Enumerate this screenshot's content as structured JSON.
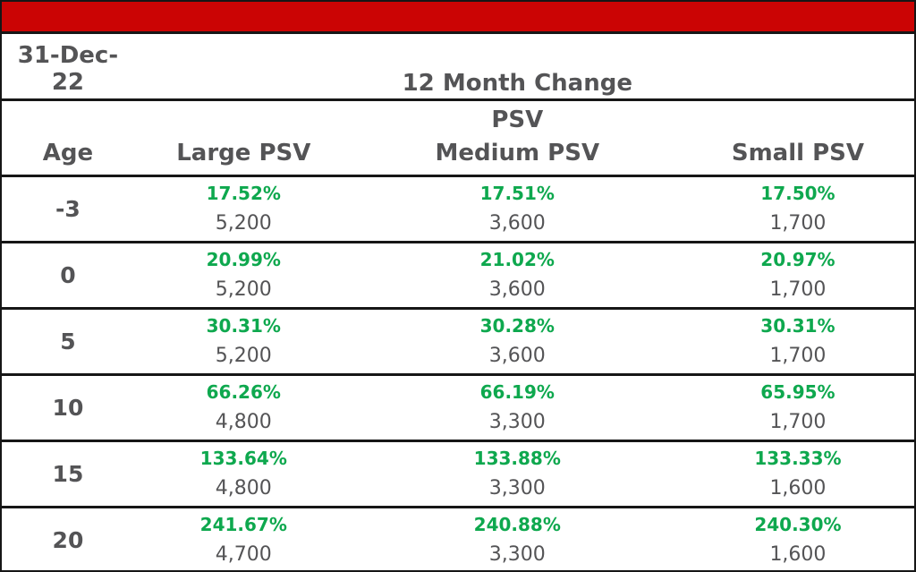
{
  "colors": {
    "banner_red": "#cb0404",
    "percent_green": "#0ea84e",
    "text_dark": "#545456",
    "border_black": "#161616"
  },
  "header": {
    "date_label": "31-Dec-22",
    "date_line1": "31-Dec-",
    "date_line2": "22",
    "group_title": "12 Month Change",
    "col_age": "Age",
    "col_large": "Large PSV",
    "col_medium_line1": "PSV",
    "col_medium_line2": "Medium PSV",
    "col_small": "Small PSV"
  },
  "chart_data": {
    "type": "table",
    "title": "12 Month Change",
    "date_label": "31-Dec-22",
    "columns": [
      "Age",
      "Large PSV",
      "PSV Medium PSV",
      "Small PSV"
    ],
    "rows": [
      {
        "age": "-3",
        "large": {
          "pct": "17.52%",
          "val": "5,200"
        },
        "medium": {
          "pct": "17.51%",
          "val": "3,600"
        },
        "small": {
          "pct": "17.50%",
          "val": "1,700"
        }
      },
      {
        "age": "0",
        "large": {
          "pct": "20.99%",
          "val": "5,200"
        },
        "medium": {
          "pct": "21.02%",
          "val": "3,600"
        },
        "small": {
          "pct": "20.97%",
          "val": "1,700"
        }
      },
      {
        "age": "5",
        "large": {
          "pct": "30.31%",
          "val": "5,200"
        },
        "medium": {
          "pct": "30.28%",
          "val": "3,600"
        },
        "small": {
          "pct": "30.31%",
          "val": "1,700"
        }
      },
      {
        "age": "10",
        "large": {
          "pct": "66.26%",
          "val": "4,800"
        },
        "medium": {
          "pct": "66.19%",
          "val": "3,300"
        },
        "small": {
          "pct": "65.95%",
          "val": "1,700"
        }
      },
      {
        "age": "15",
        "large": {
          "pct": "133.64%",
          "val": "4,800"
        },
        "medium": {
          "pct": "133.88%",
          "val": "3,300"
        },
        "small": {
          "pct": "133.33%",
          "val": "1,600"
        }
      },
      {
        "age": "20",
        "large": {
          "pct": "241.67%",
          "val": "4,700"
        },
        "medium": {
          "pct": "240.88%",
          "val": "3,300"
        },
        "small": {
          "pct": "240.30%",
          "val": "1,600"
        }
      }
    ]
  }
}
